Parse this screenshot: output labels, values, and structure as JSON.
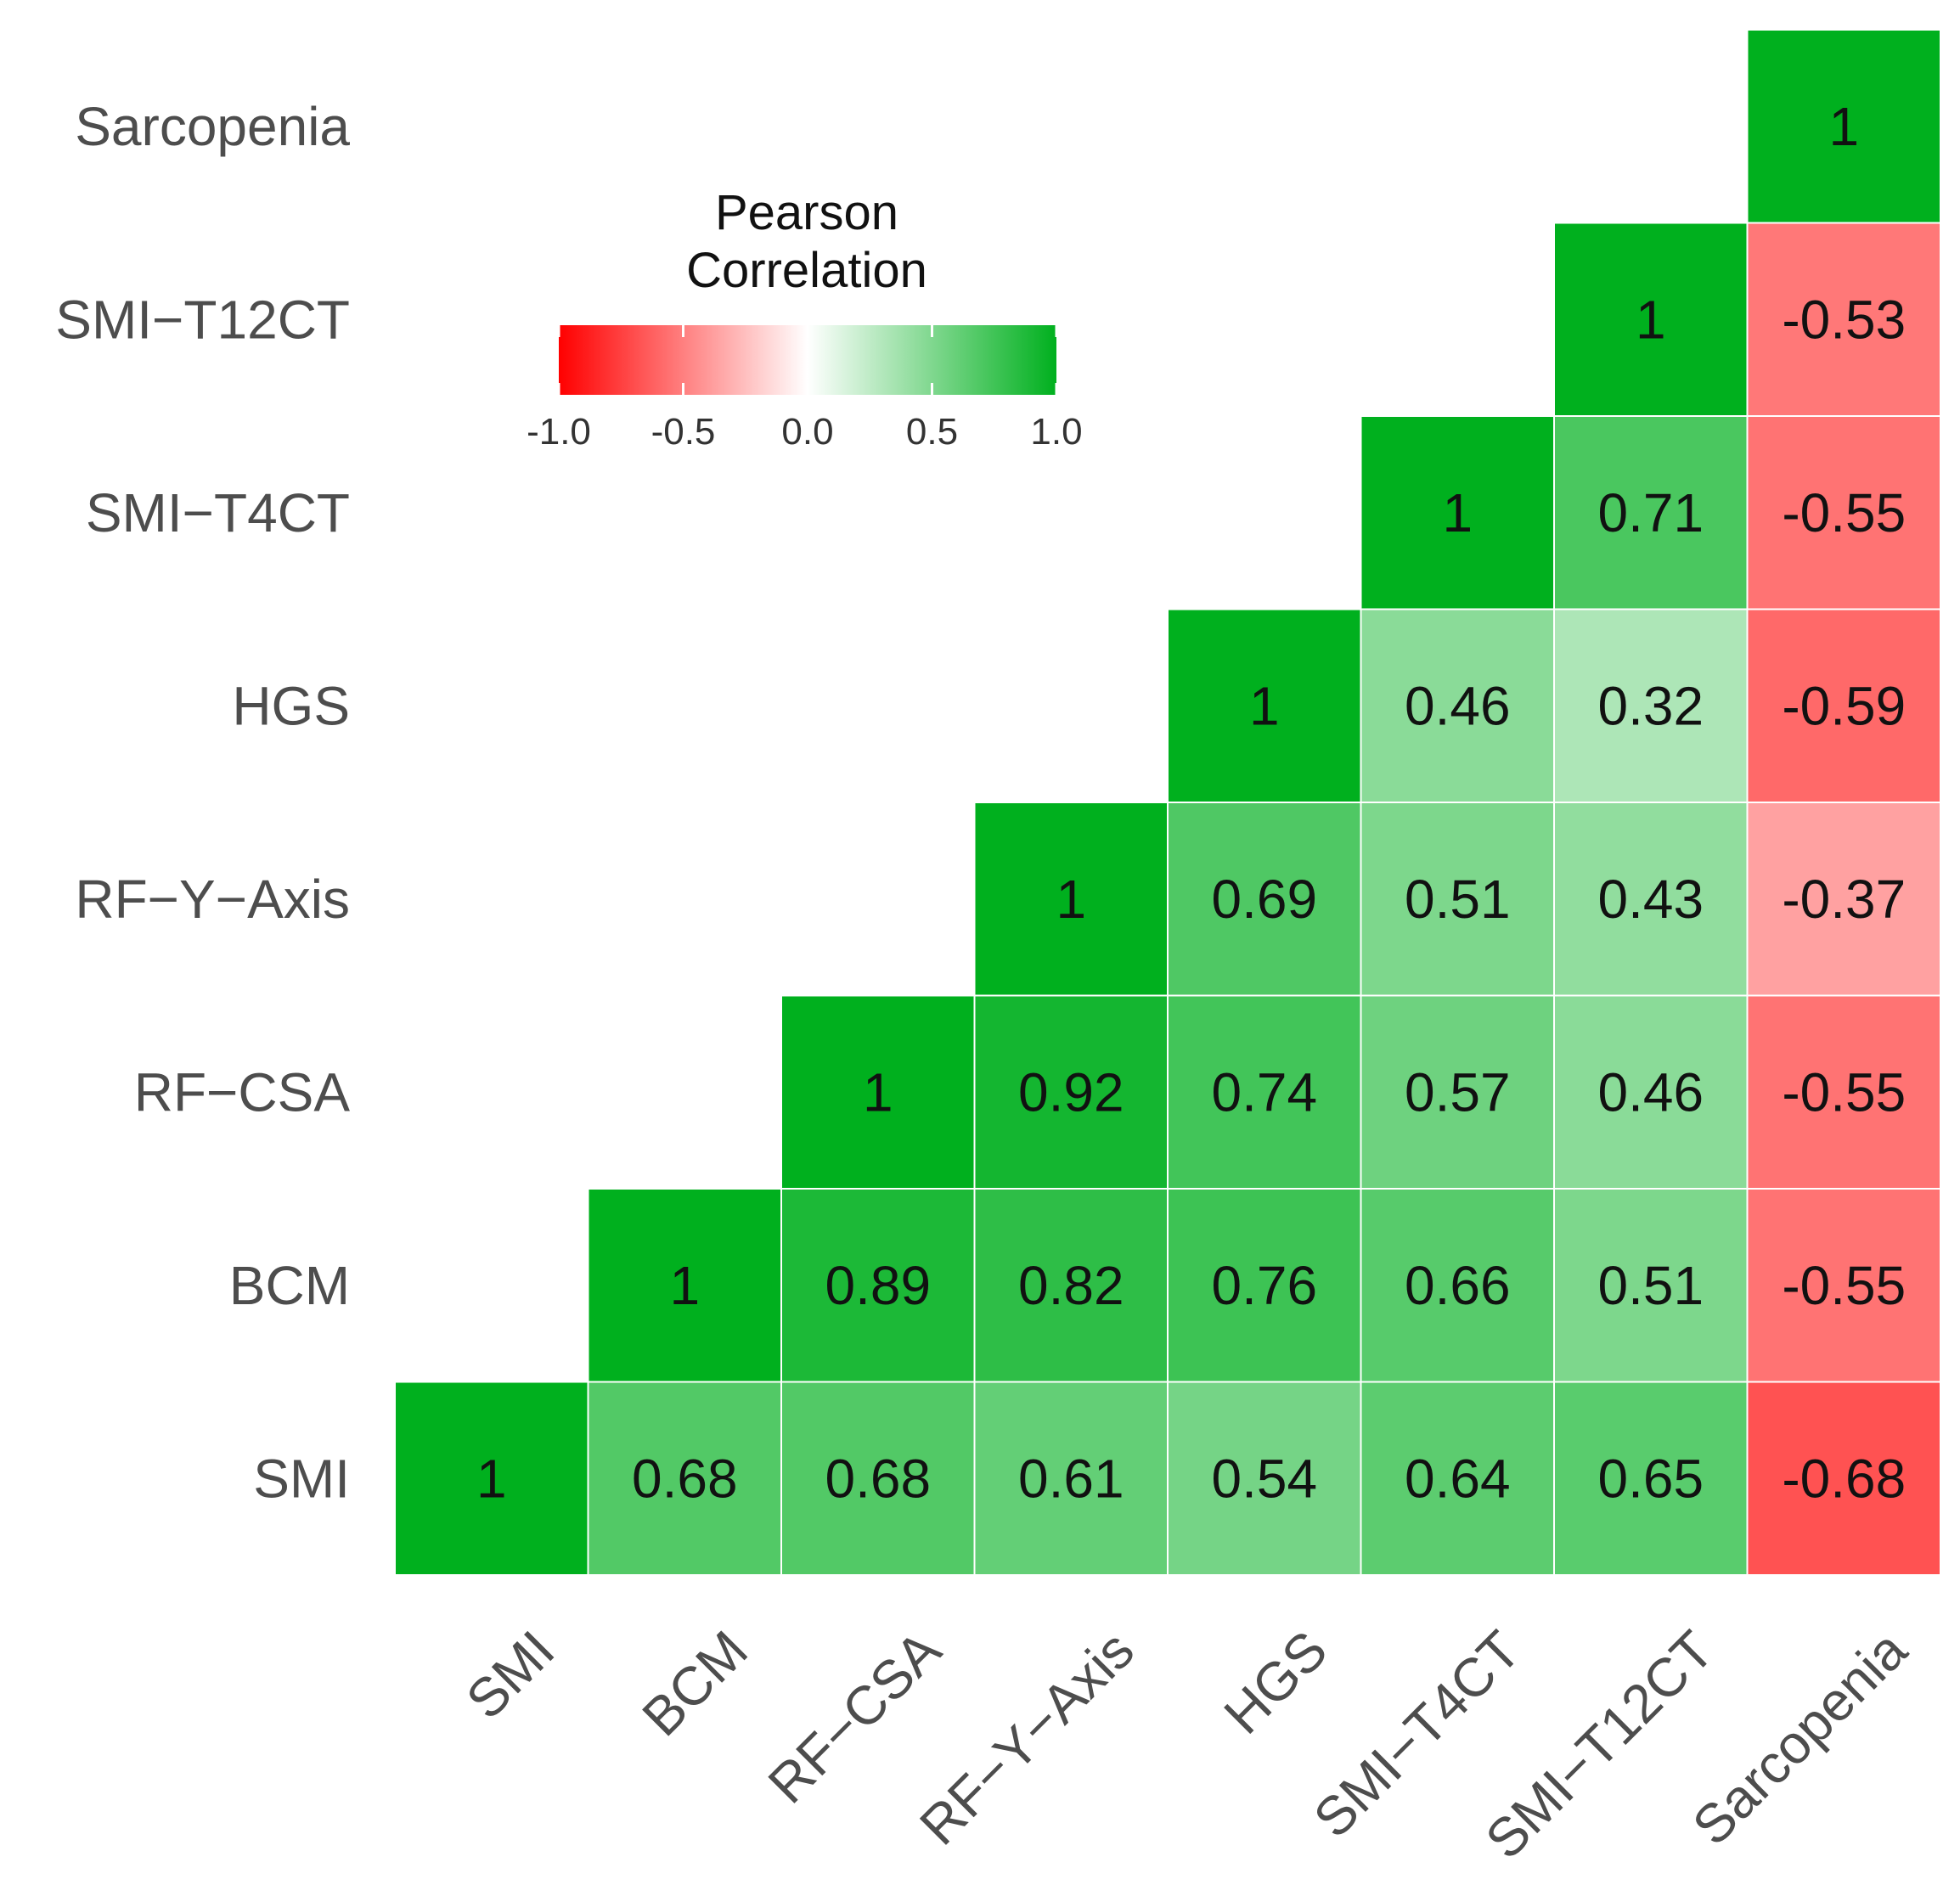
{
  "chart_data": {
    "type": "heatmap",
    "title": "",
    "variables": [
      "SMI",
      "BCM",
      "RF−CSA",
      "RF−Y−Axis",
      "HGS",
      "SMI−T4CT",
      "SMI−T12CT",
      "Sarcopenia"
    ],
    "matrix": [
      [
        1,
        0.68,
        0.68,
        0.61,
        0.54,
        0.64,
        0.65,
        -0.68
      ],
      [
        0.68,
        1,
        0.89,
        0.82,
        0.76,
        0.66,
        0.51,
        -0.55
      ],
      [
        0.68,
        0.89,
        1,
        0.92,
        0.74,
        0.57,
        0.46,
        -0.55
      ],
      [
        0.61,
        0.82,
        0.92,
        1,
        0.69,
        0.51,
        0.43,
        -0.37
      ],
      [
        0.54,
        0.76,
        0.74,
        0.69,
        1,
        0.46,
        0.32,
        -0.59
      ],
      [
        0.64,
        0.66,
        0.57,
        0.51,
        0.46,
        1,
        0.71,
        -0.55
      ],
      [
        0.65,
        0.51,
        0.46,
        0.43,
        0.32,
        0.71,
        1,
        -0.53
      ],
      [
        -0.68,
        -0.55,
        -0.55,
        -0.37,
        -0.59,
        -0.55,
        -0.53,
        1
      ]
    ],
    "shown": "upper-triangle",
    "legend": {
      "title_line1": "Pearson",
      "title_line2": "Correlation",
      "range": [
        -1.0,
        1.0
      ],
      "ticks": [
        -1.0,
        -0.5,
        0.0,
        0.5,
        1.0
      ],
      "tick_labels": [
        "-1.0",
        "-0.5",
        "0.0",
        "0.5",
        "1.0"
      ],
      "placement": "top-left"
    },
    "colors": {
      "low": "#ff0000",
      "mid": "#ffffff",
      "high": "#00b01e"
    }
  }
}
